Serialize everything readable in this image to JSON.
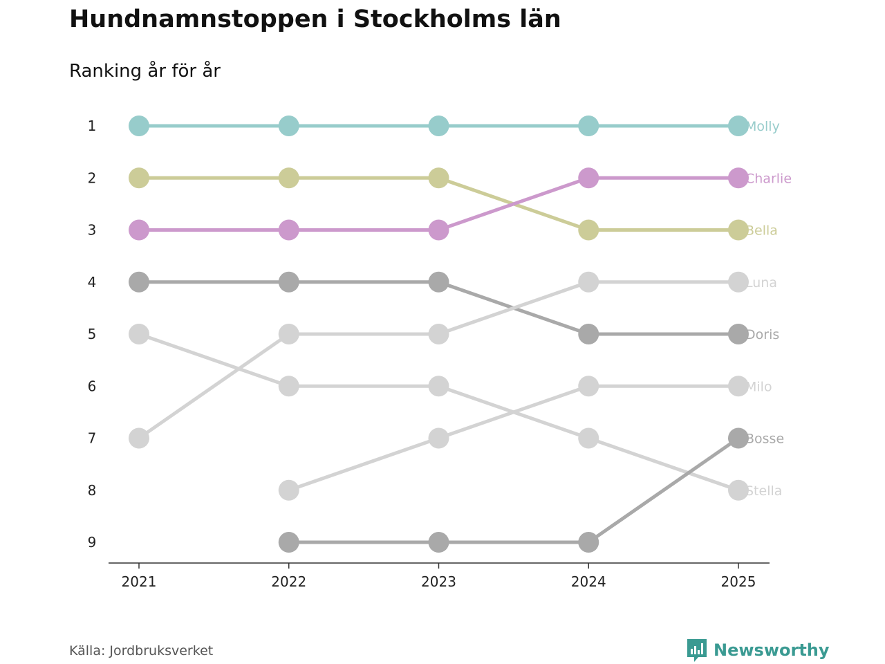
{
  "title": "Hundnamnstoppen i Stockholms län",
  "subtitle": "Ranking år för år",
  "source": "Källa: Jordbruksverket",
  "brand": {
    "name": "Newsworthy",
    "icon": "newsworthy-logo-icon",
    "color": "#3a9a92"
  },
  "chart_data": {
    "type": "line",
    "title": "Hundnamnstoppen i Stockholms län",
    "subtitle": "Ranking år för år",
    "xlabel": "",
    "ylabel": "",
    "x": [
      "2021",
      "2022",
      "2023",
      "2024",
      "2025"
    ],
    "y_ticks": [
      "1",
      "2",
      "3",
      "4",
      "5",
      "6",
      "7",
      "8",
      "9"
    ],
    "ylim": [
      1,
      9
    ],
    "y_inverted": true,
    "grid": false,
    "legend": "direct labels at right end",
    "series": [
      {
        "name": "Molly",
        "color": "#97cccb",
        "values": [
          1,
          1,
          1,
          1,
          1
        ]
      },
      {
        "name": "Bella",
        "color": "#cccc98",
        "values": [
          2,
          2,
          2,
          3,
          3
        ]
      },
      {
        "name": "Charlie",
        "color": "#cc99cc",
        "values": [
          3,
          3,
          3,
          2,
          2
        ]
      },
      {
        "name": "Doris",
        "color": "#a9a9a9",
        "values": [
          4,
          4,
          4,
          5,
          5
        ]
      },
      {
        "name": "Luna",
        "color": "#d3d3d3",
        "values": [
          7,
          5,
          5,
          4,
          4
        ]
      },
      {
        "name": "Stella",
        "color": "#d3d3d3",
        "values": [
          5,
          6,
          6,
          7,
          8
        ]
      },
      {
        "name": "Milo",
        "color": "#d3d3d3",
        "values": [
          null,
          8,
          7,
          6,
          6
        ]
      },
      {
        "name": "Bosse",
        "color": "#a9a9a9",
        "values": [
          null,
          9,
          9,
          9,
          7
        ]
      }
    ]
  }
}
